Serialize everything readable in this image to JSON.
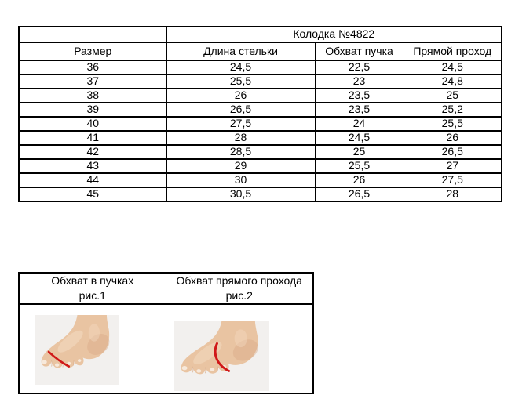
{
  "size_table": {
    "title": "Колодка №4822",
    "columns": [
      "Размер",
      "Длина стельки",
      "Обхват пучка",
      "Прямой проход"
    ],
    "rows": [
      [
        "36",
        "24,5",
        "22,5",
        "24,5"
      ],
      [
        "37",
        "25,5",
        "23",
        "24,8"
      ],
      [
        "38",
        "26",
        "23,5",
        "25"
      ],
      [
        "39",
        "26,5",
        "23,5",
        "25,2"
      ],
      [
        "40",
        "27,5",
        "24",
        "25,5"
      ],
      [
        "41",
        "28",
        "24,5",
        "26"
      ],
      [
        "42",
        "28,5",
        "25",
        "26,5"
      ],
      [
        "43",
        "29",
        "25,5",
        "27"
      ],
      [
        "44",
        "30",
        "26",
        "27,5"
      ],
      [
        "45",
        "30,5",
        "26,5",
        "28"
      ]
    ]
  },
  "figures": {
    "fig1": {
      "title": "Обхват в пучках",
      "caption": "рис.1"
    },
    "fig2": {
      "title": "Обхват прямого прохода",
      "caption": "рис.2"
    }
  },
  "colors": {
    "border": "#000000",
    "text": "#000000",
    "measure": "#d01818",
    "foot_skin": "#e9c4a2",
    "photo_bg": "#f2f0ee"
  }
}
